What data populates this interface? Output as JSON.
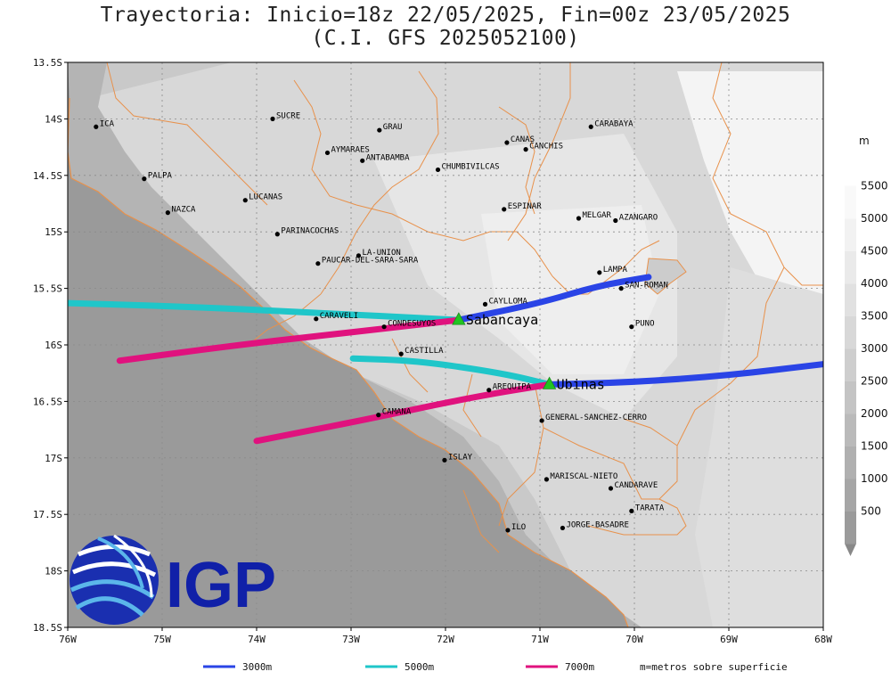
{
  "title": {
    "line1": "Trayectoria: Inicio=18z 22/05/2025, Fin=00z 23/05/2025",
    "line2": "(C.I. GFS 2025052100)"
  },
  "x_ticks": [
    "76W",
    "75W",
    "74W",
    "73W",
    "72W",
    "71W",
    "70W",
    "69W",
    "68W"
  ],
  "y_ticks": [
    "13.5S",
    "14S",
    "14.5S",
    "15S",
    "15.5S",
    "16S",
    "16.5S",
    "17S",
    "17.5S",
    "18S",
    "18.5S"
  ],
  "extent": {
    "lon_min": -76,
    "lon_max": -68,
    "lat_min": -18.5,
    "lat_max": -13.5
  },
  "places": [
    {
      "name": "ICA",
      "lon": -75.7,
      "lat": -14.07
    },
    {
      "name": "SUCRE",
      "lon": -73.83,
      "lat": -14.0
    },
    {
      "name": "GRAU",
      "lon": -72.7,
      "lat": -14.1
    },
    {
      "name": "CANAS",
      "lon": -71.35,
      "lat": -14.21
    },
    {
      "name": "CANCHIS",
      "lon": -71.15,
      "lat": -14.27
    },
    {
      "name": "CARABAYA",
      "lon": -70.46,
      "lat": -14.07
    },
    {
      "name": "AYMARAES",
      "lon": -73.25,
      "lat": -14.3
    },
    {
      "name": "ANTABAMBA",
      "lon": -72.88,
      "lat": -14.37
    },
    {
      "name": "CHUMBIVILCAS",
      "lon": -72.08,
      "lat": -14.45
    },
    {
      "name": "PALPA",
      "lon": -75.19,
      "lat": -14.53
    },
    {
      "name": "LUCANAS",
      "lon": -74.12,
      "lat": -14.72
    },
    {
      "name": "NAZCA",
      "lon": -74.94,
      "lat": -14.83
    },
    {
      "name": "ESPINAR",
      "lon": -71.38,
      "lat": -14.8
    },
    {
      "name": "MELGAR",
      "lon": -70.59,
      "lat": -14.88
    },
    {
      "name": "AZANGARO",
      "lon": -70.2,
      "lat": -14.9
    },
    {
      "name": "PARINACOCHAS",
      "lon": -73.78,
      "lat": -15.02
    },
    {
      "name": "LA-UNION",
      "lon": -72.92,
      "lat": -15.21
    },
    {
      "name": "PAUCAR-DEL-SARA-SARA",
      "lon": -73.35,
      "lat": -15.28
    },
    {
      "name": "LAMPA",
      "lon": -70.37,
      "lat": -15.36
    },
    {
      "name": "SAN-ROMAN",
      "lon": -70.14,
      "lat": -15.5
    },
    {
      "name": "CAYLLOMA",
      "lon": -71.58,
      "lat": -15.64
    },
    {
      "name": "CARAVELI",
      "lon": -73.37,
      "lat": -15.77
    },
    {
      "name": "CONDESUYOS",
      "lon": -72.65,
      "lat": -15.84
    },
    {
      "name": "PUNO",
      "lon": -70.03,
      "lat": -15.84
    },
    {
      "name": "CASTILLA",
      "lon": -72.47,
      "lat": -16.08
    },
    {
      "name": "AREQUIPA",
      "lon": -71.54,
      "lat": -16.4
    },
    {
      "name": "CAMANA",
      "lon": -72.71,
      "lat": -16.62
    },
    {
      "name": "GENERAL-SANCHEZ-CERRO",
      "lon": -70.98,
      "lat": -16.67
    },
    {
      "name": "ISLAY",
      "lon": -72.01,
      "lat": -17.02
    },
    {
      "name": "MARISCAL-NIETO",
      "lon": -70.93,
      "lat": -17.19
    },
    {
      "name": "CANDARAVE",
      "lon": -70.25,
      "lat": -17.27
    },
    {
      "name": "TARATA",
      "lon": -70.03,
      "lat": -17.47
    },
    {
      "name": "ILO",
      "lon": -71.34,
      "lat": -17.64
    },
    {
      "name": "JORGE-BASADRE",
      "lon": -70.76,
      "lat": -17.62
    }
  ],
  "volcanoes": [
    {
      "name": "Sabancaya",
      "lon": -71.86,
      "lat": -15.78
    },
    {
      "name": "Ubinas",
      "lon": -70.9,
      "lat": -16.35
    }
  ],
  "trajectories": [
    {
      "level": "3000m",
      "color": "#2a44e6",
      "points": [
        [
          -71.86,
          -15.78
        ],
        [
          -71.0,
          -15.63
        ],
        [
          -70.4,
          -15.48
        ],
        [
          -69.85,
          -15.4
        ]
      ]
    },
    {
      "level": "5000m",
      "color": "#1fc6c9",
      "points": [
        [
          -71.86,
          -15.78
        ],
        [
          -73.5,
          -15.71
        ],
        [
          -74.8,
          -15.66
        ],
        [
          -76.0,
          -15.63
        ]
      ]
    },
    {
      "level": "7000m",
      "color": "#e0127e",
      "points": [
        [
          -71.86,
          -15.78
        ],
        [
          -72.9,
          -15.88
        ],
        [
          -74.2,
          -16.0
        ],
        [
          -75.45,
          -16.14
        ]
      ]
    },
    {
      "level": "3000m",
      "color": "#2a44e6",
      "points": [
        [
          -70.9,
          -16.35
        ],
        [
          -70.0,
          -16.33
        ],
        [
          -69.0,
          -16.27
        ],
        [
          -68.0,
          -16.17
        ]
      ]
    },
    {
      "level": "5000m",
      "color": "#1fc6c9",
      "points": [
        [
          -70.9,
          -16.35
        ],
        [
          -71.4,
          -16.25
        ],
        [
          -72.3,
          -16.14
        ],
        [
          -72.98,
          -16.12
        ]
      ]
    },
    {
      "level": "7000m",
      "color": "#e0127e",
      "points": [
        [
          -70.9,
          -16.35
        ],
        [
          -71.7,
          -16.46
        ],
        [
          -72.9,
          -16.67
        ],
        [
          -74.0,
          -16.85
        ]
      ]
    }
  ],
  "legend": {
    "items": [
      {
        "label": "3000m",
        "color": "#2a44e6"
      },
      {
        "label": "5000m",
        "color": "#1fc6c9"
      },
      {
        "label": "7000m",
        "color": "#e0127e"
      }
    ],
    "note": "m=metros sobre superficie"
  },
  "colorbar": {
    "unit": "m",
    "ticks": [
      "500",
      "1000",
      "1500",
      "2000",
      "2500",
      "3000",
      "3500",
      "4000",
      "4500",
      "5000",
      "5500"
    ],
    "colors": [
      "#9b9b9b",
      "#a6a6a6",
      "#b0b0b0",
      "#bababa",
      "#c4c4c4",
      "#cecece",
      "#d8d8d8",
      "#e1e1e1",
      "#eaeaea",
      "#f2f2f2",
      "#f9f9f9",
      "#ffffff"
    ]
  },
  "logo": {
    "text": "IGP",
    "color": "#1020a8"
  }
}
